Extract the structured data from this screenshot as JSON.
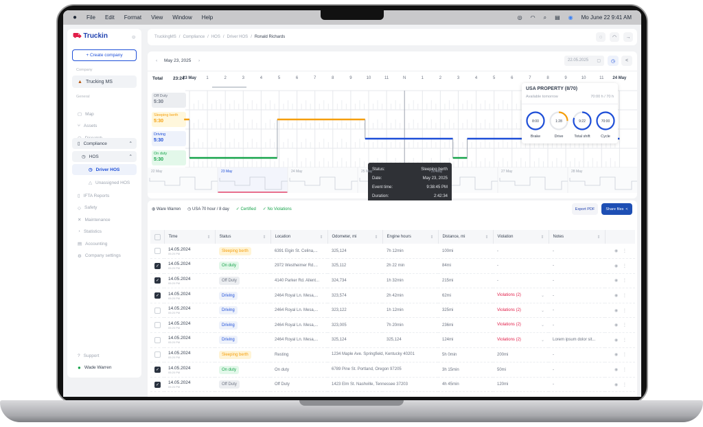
{
  "menubar": {
    "apple": "",
    "items": [
      "File",
      "Edit",
      "Format",
      "View",
      "Window",
      "Help"
    ],
    "datetime": "Mo June 22  9:41 AM"
  },
  "sidebar": {
    "logo": "Truckin",
    "create": "+ Create company",
    "company_label": "Company",
    "company": "Trucking MS",
    "general_label": "General",
    "items": [
      {
        "label": "Map",
        "icon": "map-icon",
        "g": "▢"
      },
      {
        "label": "Assets",
        "icon": "assets-icon",
        "g": "⑂"
      },
      {
        "label": "Dispatch",
        "icon": "headset-icon",
        "g": "◠"
      }
    ],
    "compliance": "Compliance",
    "hos": "HOS",
    "driver_hos": "Driver HOS",
    "unassigned": "Unassigned HOS",
    "items2": [
      {
        "label": "IFTA Reports",
        "icon": "fuel-icon",
        "g": "▯"
      },
      {
        "label": "Safety",
        "icon": "shield-icon",
        "g": "◇"
      },
      {
        "label": "Maintenance",
        "icon": "tools-icon",
        "g": "✕"
      },
      {
        "label": "Statistics",
        "icon": "chart-icon",
        "g": "◔"
      },
      {
        "label": "Accounting",
        "icon": "calculator-icon",
        "g": "▤"
      },
      {
        "label": "Company settings",
        "icon": "gear-icon",
        "g": "⚙"
      }
    ],
    "support": "Support",
    "user": "Wade Warren"
  },
  "breadcrumb": [
    "TruckingMS",
    "Compliance",
    "HOS",
    "Driver HOS",
    "Ronald Richards"
  ],
  "chart": {
    "date": "May 23, 2025",
    "date_input": "22.05.2025",
    "total_label": "Total",
    "total": "23:24",
    "hours": [
      "23 May",
      "1",
      "2",
      "3",
      "4",
      "5",
      "6",
      "7",
      "8",
      "9",
      "10",
      "11",
      "N",
      "1",
      "2",
      "3",
      "4",
      "5",
      "6",
      "7",
      "8",
      "9",
      "10",
      "11",
      "24 May"
    ],
    "lanes": [
      {
        "label": "Off Duty",
        "value": "5:30",
        "color": "#6b7280",
        "bg": "#eceef1"
      },
      {
        "label": "Sleeping berth",
        "value": "5:30",
        "color": "#f59e0b",
        "bg": "#fff7dc"
      },
      {
        "label": "Driving",
        "value": "5:30",
        "color": "#1d4ed8",
        "bg": "#eef2fb"
      },
      {
        "label": "On duty",
        "value": "5:30",
        "color": "#16a34a",
        "bg": "#e3f8ea"
      }
    ],
    "segments": [
      {
        "lane": 1,
        "start": -0.3,
        "end": 0
      },
      {
        "lane": 3,
        "start": 0,
        "end": 4.9
      },
      {
        "lane": 1,
        "start": 4.9,
        "end": 9.8
      },
      {
        "lane": 2,
        "start": 9.8,
        "end": 14.7
      },
      {
        "lane": 3,
        "start": 14.7,
        "end": 15.5
      },
      {
        "lane": 2,
        "start": 15.5,
        "end": 20.5
      },
      {
        "lane": 0,
        "start": 20.5,
        "end": 21.4
      },
      {
        "lane": 2,
        "start": 21.4,
        "end": 24
      }
    ],
    "days": [
      "22 May",
      "23 May",
      "24 May",
      "25 May",
      "26 May",
      "27 May",
      "28 May"
    ],
    "tooltip": [
      {
        "k": "Status:",
        "v": "Sleeping berth"
      },
      {
        "k": "Date:",
        "v": "May 23, 2025"
      },
      {
        "k": "Event time:",
        "v": "9:38:45 PM"
      },
      {
        "k": "Duration:",
        "v": "2:42:34"
      }
    ],
    "popover": {
      "title": "USA PROPERTY (8/70)",
      "sub": "Available tomorrow",
      "hours": "70:00 h / 70 h",
      "gauges": [
        {
          "v": "8:00",
          "label": "Brake",
          "pct": 100,
          "color": "#1d4ed8"
        },
        {
          "v": "1:28",
          "label": "Drive",
          "pct": 25,
          "color": "#f59e0b"
        },
        {
          "v": "9:22",
          "label": "Total shift",
          "pct": 80,
          "color": "#1d4ed8"
        },
        {
          "v": "70:00",
          "label": "Cycle",
          "pct": 100,
          "color": "#1d4ed8"
        }
      ]
    }
  },
  "table": {
    "driver": "Ware Warren",
    "rule": "USA 70 hour / 8 day",
    "certified": "Certified",
    "no_violations": "No Violations",
    "export": "Export PDF",
    "share": "Share files",
    "columns": [
      "Time",
      "Status",
      "Location",
      "Odometer, mi",
      "Engine hours",
      "Distance, mi",
      "Violation",
      "Notes"
    ],
    "rows": [
      {
        "checked": false,
        "date": "14.05.2024",
        "time": "05:20 PM",
        "status": "Sleeping berth",
        "loc": "6391 Elgin St. Celina,...",
        "odo": "325,124",
        "eng": "7h 12min",
        "dist": "100mi",
        "viol": "-",
        "notes": "-"
      },
      {
        "checked": true,
        "date": "14.05.2024",
        "time": "05:20 PM",
        "status": "On duty",
        "loc": "2972 Westheimer Rd....",
        "odo": "325,112",
        "eng": "2h 22 min",
        "dist": "84mi",
        "viol": "-",
        "notes": "-"
      },
      {
        "checked": true,
        "date": "14.05.2024",
        "time": "05:20 PM",
        "status": "Off Duty",
        "loc": "4140 Parker Rd. Allent...",
        "odo": "324,734",
        "eng": "1h 32min",
        "dist": "215mi",
        "viol": "-",
        "notes": "-"
      },
      {
        "checked": true,
        "date": "14.05.2024",
        "time": "05:20 PM",
        "status": "Driving",
        "loc": "2464 Royal Ln. Mesa,...",
        "odo": "323,574",
        "eng": "2h 42min",
        "dist": "62mi",
        "viol": "Violations (2)",
        "notes": "-"
      },
      {
        "checked": false,
        "date": "14.05.2024",
        "time": "05:20 PM",
        "status": "Driving",
        "loc": "2464 Royal Ln. Mesa,...",
        "odo": "323,122",
        "eng": "1h 12min",
        "dist": "325mi",
        "viol": "Violations (2)",
        "notes": "-"
      },
      {
        "checked": false,
        "date": "14.05.2024",
        "time": "05:20 PM",
        "status": "Driving",
        "loc": "2464 Royal Ln. Mesa,...",
        "odo": "323,005",
        "eng": "7h 20min",
        "dist": "236mi",
        "viol": "Violations (2)",
        "notes": "-"
      },
      {
        "checked": false,
        "date": "14.05.2024",
        "time": "05:20 PM",
        "status": "Driving",
        "loc": "2464 Royal Ln. Mesa,...",
        "odo": "325,124",
        "eng": "325,124",
        "dist": "124mi",
        "viol": "Violations (2)",
        "notes": "Lorem ipsum dolor sit..."
      },
      {
        "checked": false,
        "date": "14.05.2024",
        "time": "05:20 PM",
        "status": "Sleeping berth",
        "loc": "Resting",
        "odo": "1234 Maple Ave. Springfield, Kentucky 40201",
        "eng": "",
        "dist": "5h 0min",
        "viol": "200mi",
        "notes": "-"
      },
      {
        "checked": true,
        "date": "14.05.2024",
        "time": "05:20 PM",
        "status": "On duty",
        "loc": "On duty",
        "odo": "6789 Pine St. Portland, Oregon 97205",
        "eng": "",
        "dist": "3h 15min",
        "viol": "50mi",
        "notes": "-"
      },
      {
        "checked": true,
        "date": "14.05.2024",
        "time": "05:20 PM",
        "status": "Off Duty",
        "loc": "Off Duty",
        "odo": "1423 Elm St. Nashville, Tennessee 37203",
        "eng": "",
        "dist": "4h 45min",
        "viol": "120mi",
        "notes": "-"
      }
    ]
  },
  "status_colors": {
    "Sleeping berth": [
      "#f59e0b",
      "#fff4d6"
    ],
    "On duty": [
      "#16a34a",
      "#e3f8ea"
    ],
    "Off Duty": [
      "#6b7280",
      "#eceef1"
    ],
    "Driving": [
      "#1d4ed8",
      "#eef2fb"
    ]
  }
}
